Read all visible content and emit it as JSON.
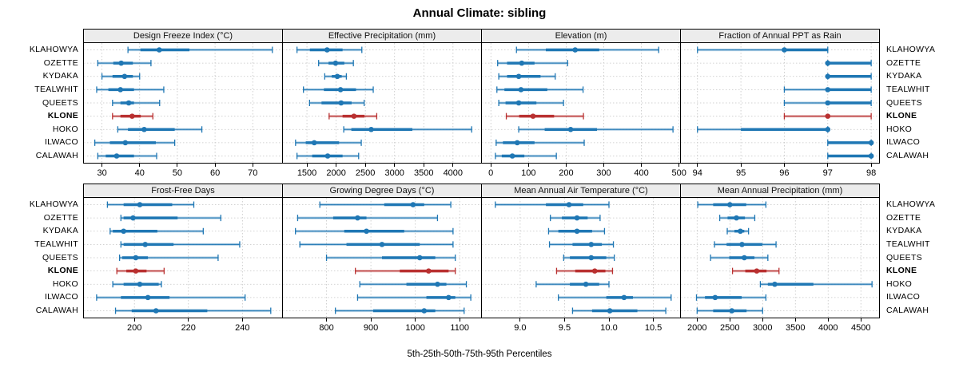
{
  "title": "Annual Climate: sibling",
  "footer": "5th-25th-50th-75th-95th Percentiles",
  "colors": {
    "series": "#1f77b4",
    "highlight": "#b93030",
    "strip_bg": "#ececec",
    "grid": "#c4c4c4",
    "border": "#000000"
  },
  "chart_data": {
    "type": "interval-dotplot",
    "layout": "2 rows x 4 columns, shared station axis",
    "percentiles": [
      5,
      25,
      50,
      75,
      95
    ],
    "stations": [
      "KLAHOWYA",
      "OZETTE",
      "KYDAKA",
      "TEALWHIT",
      "QUEETS",
      "KLONE",
      "HOKO",
      "ILWACO",
      "CALAWAH"
    ],
    "highlight_station": "KLONE",
    "panels": [
      {
        "title": "Design Freeze Index (°C)",
        "xlim": [
          25,
          78
        ],
        "ticks": [
          30,
          40,
          50,
          60,
          70
        ],
        "tick_labels": [
          "30",
          "40",
          "50",
          "60",
          "70"
        ],
        "values": [
          [
            36.9,
            40.2,
            45.2,
            53.2,
            75.2
          ],
          [
            28.9,
            33.0,
            35.1,
            38.2,
            43.0
          ],
          [
            30.0,
            32.8,
            36.0,
            38.2,
            40.0
          ],
          [
            28.6,
            31.7,
            34.9,
            38.5,
            46.4
          ],
          [
            32.8,
            34.9,
            37.1,
            38.5,
            45.3
          ],
          [
            32.8,
            34.9,
            38.0,
            40.3,
            43.5
          ],
          [
            34.2,
            36.9,
            41.2,
            49.3,
            56.5
          ],
          [
            28.1,
            32.1,
            36.2,
            44.3,
            49.3
          ],
          [
            28.9,
            31.0,
            33.9,
            38.5,
            44.5
          ]
        ]
      },
      {
        "title": "Effective Precipitation (mm)",
        "xlim": [
          1075,
          4495
        ],
        "ticks": [
          1500,
          2000,
          2500,
          3000,
          3500,
          4000
        ],
        "tick_labels": [
          "1500",
          "2000",
          "2500",
          "3000",
          "3500",
          "4000"
        ],
        "values": [
          [
            1330,
            1550,
            1845,
            2110,
            2440
          ],
          [
            1700,
            1870,
            1990,
            2140,
            2295
          ],
          [
            1805,
            1925,
            2020,
            2095,
            2175
          ],
          [
            1440,
            1790,
            2075,
            2340,
            2635
          ],
          [
            1545,
            1750,
            2085,
            2265,
            2480
          ],
          [
            1880,
            2110,
            2305,
            2485,
            2695
          ],
          [
            2130,
            2260,
            2600,
            3305,
            4320
          ],
          [
            1305,
            1480,
            1625,
            2050,
            2430
          ],
          [
            1330,
            1590,
            1855,
            2110,
            2385
          ]
        ]
      },
      {
        "title": "Elevation (m)",
        "xlim": [
          -26,
          505
        ],
        "ticks": [
          0,
          100,
          200,
          300,
          400,
          500
        ],
        "tick_labels": [
          "0",
          "100",
          "200",
          "300",
          "400",
          "500"
        ],
        "values": [
          [
            68,
            146,
            224,
            288,
            446
          ],
          [
            18,
            43,
            82,
            116,
            204
          ],
          [
            21,
            43,
            74,
            132,
            171
          ],
          [
            16,
            36,
            80,
            150,
            245
          ],
          [
            21,
            39,
            74,
            121,
            193
          ],
          [
            41,
            75,
            112,
            168,
            246
          ],
          [
            74,
            143,
            212,
            282,
            484
          ],
          [
            14,
            32,
            70,
            116,
            248
          ],
          [
            12,
            29,
            57,
            89,
            174
          ]
        ]
      },
      {
        "title": "Fraction of Annual PPT as Rain",
        "xlim": [
          93.6,
          98.2
        ],
        "ticks": [
          94,
          95,
          96,
          97,
          98
        ],
        "tick_labels": [
          "94",
          "95",
          "96",
          "97",
          "98"
        ],
        "values": [
          [
            94,
            96,
            96,
            97,
            97
          ],
          [
            97,
            97,
            97,
            98,
            98
          ],
          [
            97,
            97,
            97,
            98,
            98
          ],
          [
            96,
            97,
            97,
            98,
            98
          ],
          [
            96,
            97,
            97,
            98,
            98
          ],
          [
            96,
            97,
            97,
            97,
            98
          ],
          [
            94,
            95,
            97,
            97,
            97
          ],
          [
            97,
            97,
            98,
            98,
            98
          ],
          [
            97,
            97,
            98,
            98,
            98
          ]
        ]
      },
      {
        "title": "Frost-Free Days",
        "xlim": [
          181,
          255
        ],
        "ticks": [
          200,
          220,
          240
        ],
        "tick_labels": [
          "200",
          "220",
          "240"
        ],
        "values": [
          [
            190,
            196,
            202,
            214,
            222
          ],
          [
            195,
            196,
            199.5,
            216,
            232
          ],
          [
            191,
            192,
            196,
            208.5,
            225.5
          ],
          [
            195,
            196,
            204,
            214.5,
            239
          ],
          [
            194.5,
            195.5,
            200.5,
            205,
            231
          ],
          [
            193.5,
            197,
            200.5,
            204.5,
            211
          ],
          [
            192,
            196,
            202,
            209,
            210
          ],
          [
            186,
            195,
            205,
            213,
            241
          ],
          [
            193,
            199,
            208,
            227,
            250.5
          ]
        ]
      },
      {
        "title": "Growing Degree Days (°C)",
        "xlim": [
          700,
          1150
        ],
        "ticks": [
          800,
          900,
          1000,
          1100
        ],
        "tick_labels": [
          "800",
          "900",
          "1000",
          "1100"
        ],
        "values": [
          [
            785,
            930,
            995,
            1020,
            1080
          ],
          [
            735,
            815,
            870,
            890,
            1050
          ],
          [
            730,
            840,
            890,
            975,
            1085
          ],
          [
            740,
            845,
            925,
            1010,
            1085
          ],
          [
            800,
            925,
            1010,
            1045,
            1090
          ],
          [
            865,
            965,
            1030,
            1075,
            1090
          ],
          [
            875,
            980,
            1050,
            1070,
            1115
          ],
          [
            870,
            1025,
            1075,
            1090,
            1125
          ],
          [
            820,
            905,
            1020,
            1045,
            1110
          ]
        ]
      },
      {
        "title": "Mean Annual Air Temperature (°C)",
        "xlim": [
          8.56,
          10.81
        ],
        "ticks": [
          9.0,
          9.5,
          10.0,
          10.5
        ],
        "tick_labels": [
          "9.0",
          "9.5",
          "10.0",
          "10.5"
        ],
        "values": [
          [
            8.72,
            9.29,
            9.55,
            9.71,
            10.0
          ],
          [
            9.34,
            9.47,
            9.64,
            9.76,
            9.9
          ],
          [
            9.32,
            9.43,
            9.64,
            9.81,
            9.95
          ],
          [
            9.33,
            9.59,
            9.8,
            9.92,
            10.05
          ],
          [
            9.49,
            9.56,
            9.8,
            9.97,
            10.06
          ],
          [
            9.41,
            9.62,
            9.84,
            9.96,
            10.04
          ],
          [
            9.18,
            9.56,
            9.74,
            9.89,
            10.0
          ],
          [
            9.43,
            9.97,
            10.17,
            10.27,
            10.7
          ],
          [
            9.59,
            9.81,
            10.01,
            10.32,
            10.64
          ]
        ]
      },
      {
        "title": "Mean Annual Precipitation (mm)",
        "xlim": [
          1740,
          4790
        ],
        "ticks": [
          2000,
          2500,
          3000,
          3500,
          4000,
          4500
        ],
        "tick_labels": [
          "2000",
          "2500",
          "3000",
          "3500",
          "4000",
          "4500"
        ],
        "values": [
          [
            2010,
            2245,
            2500,
            2750,
            3050
          ],
          [
            2345,
            2465,
            2600,
            2730,
            2880
          ],
          [
            2460,
            2570,
            2660,
            2720,
            2785
          ],
          [
            2265,
            2450,
            2685,
            2995,
            3205
          ],
          [
            2205,
            2490,
            2720,
            2875,
            3080
          ],
          [
            2540,
            2735,
            2910,
            3060,
            3250
          ],
          [
            2965,
            3080,
            3185,
            3775,
            4670
          ],
          [
            1990,
            2120,
            2275,
            2680,
            3050
          ],
          [
            2000,
            2245,
            2530,
            2755,
            3000
          ]
        ]
      }
    ]
  }
}
